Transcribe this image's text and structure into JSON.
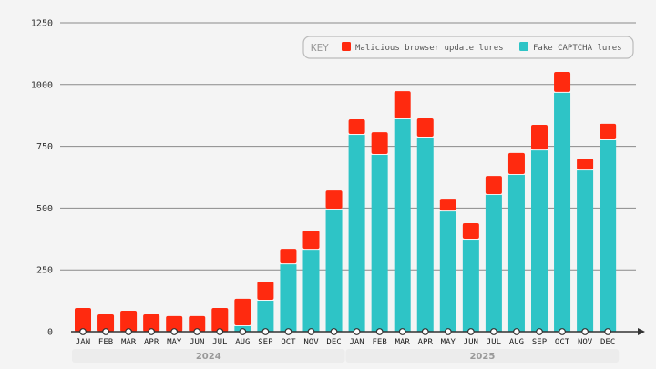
{
  "chart_data": {
    "type": "bar",
    "stacked": true,
    "title": "",
    "xlabel": "",
    "ylabel": "",
    "ylim": [
      0,
      1250
    ],
    "yticks": [
      0,
      250,
      500,
      750,
      1000,
      1250
    ],
    "grid": true,
    "legend_title": "KEY",
    "legend_position": "top-right",
    "categories": [
      "JAN",
      "FEB",
      "MAR",
      "APR",
      "MAY",
      "JUN",
      "JUL",
      "AUG",
      "SEP",
      "OCT",
      "NOV",
      "DEC",
      "JAN",
      "FEB",
      "MAR",
      "APR",
      "MAY",
      "JUN",
      "JUL",
      "AUG",
      "SEP",
      "OCT",
      "NOV",
      "DEC"
    ],
    "groups": [
      {
        "label": "2024",
        "count": 12
      },
      {
        "label": "2025",
        "count": 12
      }
    ],
    "series": [
      {
        "name": "Fake CAPTCHA lures",
        "color": "#2ec4c6",
        "values": [
          0,
          0,
          0,
          0,
          0,
          0,
          0,
          26,
          129,
          276,
          335,
          498,
          800,
          719,
          863,
          789,
          490,
          376,
          557,
          638,
          737,
          970,
          656,
          778
        ]
      },
      {
        "name": "Malicious browser update lures",
        "color": "#ff2a0f",
        "values": [
          96,
          70,
          85,
          70,
          63,
          63,
          96,
          107,
          74,
          59,
          74,
          73,
          59,
          88,
          110,
          74,
          48,
          63,
          73,
          85,
          100,
          81,
          44,
          63
        ]
      }
    ],
    "legend_order": [
      "Malicious browser update lures",
      "Fake CAPTCHA lures"
    ]
  }
}
